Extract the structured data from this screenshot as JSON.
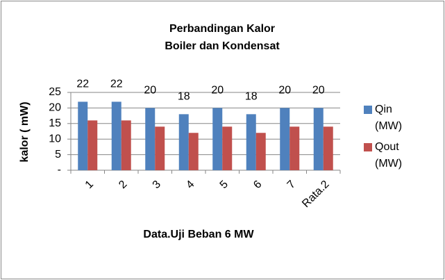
{
  "chart_data": {
    "type": "bar",
    "title": [
      "Perbandingan Kalor",
      "Boiler dan Kondensat"
    ],
    "x_label": "Data.Uji Beban 6 MW",
    "y_label": "kalor ( mW)",
    "categories": [
      "1",
      "2",
      "3",
      "4",
      "5",
      "6",
      "7",
      "Rata.2"
    ],
    "series": [
      {
        "name": "Qin (MW)",
        "color": "#4f81bd",
        "values": [
          22,
          22,
          20,
          18,
          20,
          18,
          20,
          20
        ],
        "data_labels": true
      },
      {
        "name": "Qout (MW)",
        "color": "#c0504d",
        "values": [
          16,
          16,
          14,
          12,
          14,
          12,
          14,
          14
        ],
        "data_labels": false
      }
    ],
    "ylim": [
      0,
      25
    ],
    "yticks": [
      {
        "value": 0,
        "label": "-"
      },
      5,
      10,
      15,
      20,
      25
    ],
    "grid": true,
    "legend": "right"
  }
}
